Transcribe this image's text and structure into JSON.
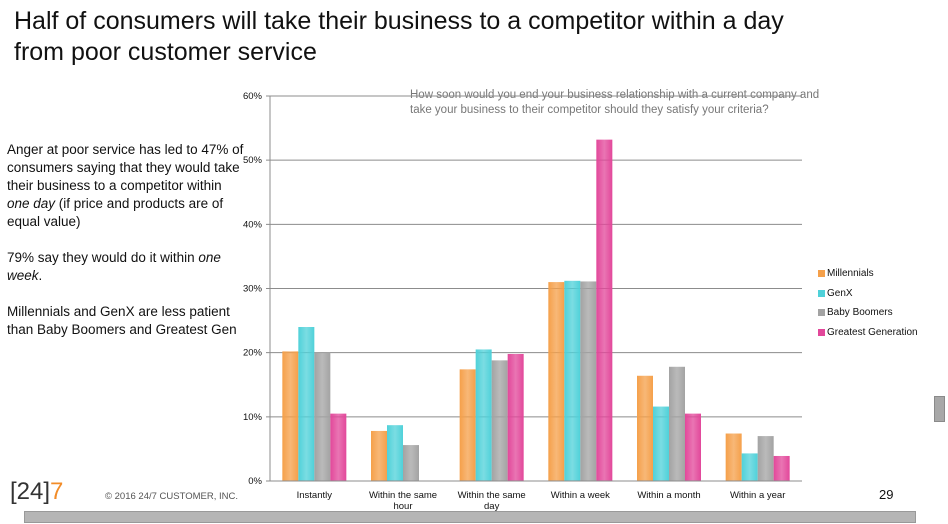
{
  "slide": {
    "title_line1": "Half of consumers will take their business to a competitor within a day",
    "title_line2": "from poor customer service",
    "body": {
      "p1_a": "Anger at poor service has led to 47% of consumers saying that they would take their business to a competitor within ",
      "p1_em": "one day",
      "p1_b": " (if price and products are of equal value)",
      "p2_a": "79% say they would do it within ",
      "p2_em": "one week",
      "p2_b": ".",
      "p3": "Millennials and GenX are less patient than Baby Boomers and Greatest Gen"
    },
    "logo": {
      "bracket_open": "[",
      "num": "24",
      "bracket_close": "]",
      "seven": "7"
    },
    "copyright": "© 2016  24/7 CUSTOMER, INC.",
    "page_number": "29"
  },
  "chart_data": {
    "type": "bar",
    "title": "How soon would you end your business relationship with a current company and take your business to their competitor should they satisfy your criteria?",
    "categories": [
      "Instantly",
      "Within the same hour",
      "Within the same day",
      "Within a week",
      "Within a month",
      "Within a year"
    ],
    "series": [
      {
        "name": "Millennials",
        "color": "#f5a04a",
        "values": [
          20.2,
          7.8,
          17.4,
          31.0,
          16.4,
          7.4
        ]
      },
      {
        "name": "GenX",
        "color": "#4fd1d9",
        "values": [
          24.0,
          8.7,
          20.5,
          31.2,
          11.6,
          4.3
        ]
      },
      {
        "name": "Baby Boomers",
        "color": "#a3a3a3",
        "values": [
          20.0,
          5.6,
          18.8,
          31.1,
          17.8,
          7.0
        ]
      },
      {
        "name": "Greatest Generation",
        "color": "#e2479a",
        "values": [
          10.5,
          0,
          19.8,
          53.2,
          10.5,
          3.9
        ]
      }
    ],
    "yticks": [
      "0%",
      "10%",
      "20%",
      "30%",
      "40%",
      "50%",
      "60%"
    ],
    "ylim": [
      0,
      60
    ],
    "grid": true,
    "legend_position": "right"
  }
}
